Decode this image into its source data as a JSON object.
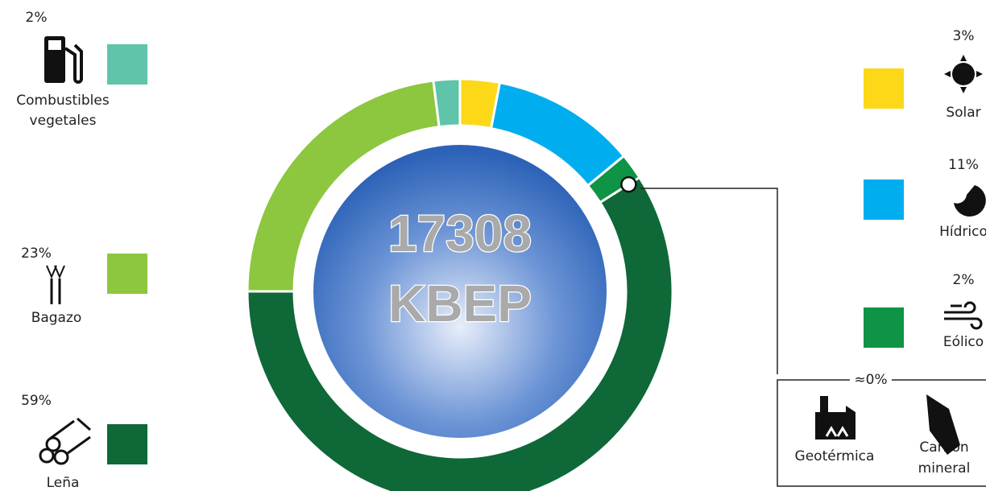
{
  "chart_data": {
    "type": "donut",
    "total": "17308",
    "unit": "KBEP",
    "categories": [
      "Solar",
      "Hídrico",
      "Eólico",
      "Leña",
      "Bagazo",
      "Combustibles vegetales"
    ],
    "values": [
      3,
      11,
      2,
      59,
      23,
      2
    ],
    "value_labels": [
      "3%",
      "11%",
      "2%",
      "59%",
      "23%",
      "2%"
    ],
    "colors": [
      "#fcd819",
      "#00aeef",
      "#0f9345",
      "#0e6838",
      "#8dc63f",
      "#5fc4a9"
    ],
    "near_zero": {
      "label": "≈0%",
      "categories": [
        "Geotérmica",
        "Carbón mineral"
      ],
      "values": [
        0,
        0
      ]
    }
  }
}
